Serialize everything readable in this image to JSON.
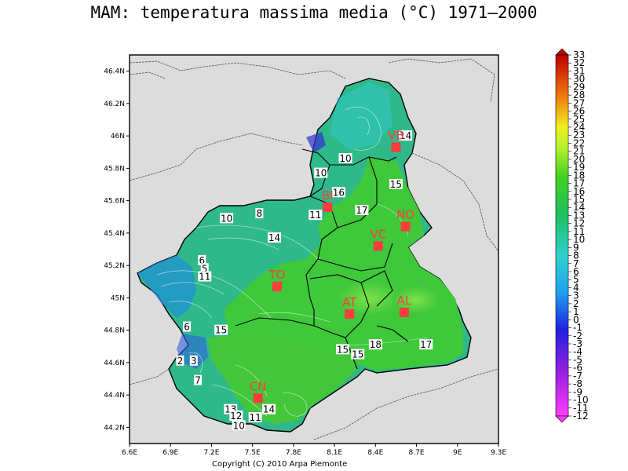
{
  "title": "MAM: temperatura massima media (°C) 1971–2000",
  "copyright": "Copyright (C) 2010 Arpa Piemonte",
  "map": {
    "lat_ticks": [
      "46.4N",
      "46.2N",
      "46N",
      "45.8N",
      "45.6N",
      "45.4N",
      "45.2N",
      "45N",
      "44.8N",
      "44.6N",
      "44.4N",
      "44.2N"
    ],
    "lon_ticks": [
      "6.6E",
      "6.9E",
      "7.2E",
      "7.5E",
      "7.8E",
      "8.1E",
      "8.4E",
      "8.7E",
      "9E",
      "9.3E"
    ],
    "cities": [
      {
        "code": "VB",
        "lon": 8.55,
        "lat": 45.93
      },
      {
        "code": "BI",
        "lon": 8.05,
        "lat": 45.56
      },
      {
        "code": "NO",
        "lon": 8.62,
        "lat": 45.44
      },
      {
        "code": "VC",
        "lon": 8.42,
        "lat": 45.32
      },
      {
        "code": "TO",
        "lon": 7.68,
        "lat": 45.07
      },
      {
        "code": "AT",
        "lon": 8.21,
        "lat": 44.9
      },
      {
        "code": "AL",
        "lon": 8.61,
        "lat": 44.91
      },
      {
        "code": "CN",
        "lon": 7.54,
        "lat": 44.38
      }
    ],
    "contour_labels": [
      {
        "text": "14",
        "lon": 8.62,
        "lat": 46.0
      },
      {
        "text": "10",
        "lon": 8.18,
        "lat": 45.86
      },
      {
        "text": "10",
        "lon": 8.0,
        "lat": 45.77
      },
      {
        "text": "16",
        "lon": 8.13,
        "lat": 45.65
      },
      {
        "text": "15",
        "lon": 8.55,
        "lat": 45.7
      },
      {
        "text": "17",
        "lon": 8.3,
        "lat": 45.54
      },
      {
        "text": "10",
        "lon": 7.31,
        "lat": 45.49
      },
      {
        "text": "8",
        "lon": 7.55,
        "lat": 45.52
      },
      {
        "text": "11",
        "lon": 7.96,
        "lat": 45.51
      },
      {
        "text": "14",
        "lon": 7.66,
        "lat": 45.37
      },
      {
        "text": "6",
        "lon": 7.13,
        "lat": 45.23
      },
      {
        "text": "5",
        "lon": 7.15,
        "lat": 45.18
      },
      {
        "text": "11",
        "lon": 7.15,
        "lat": 45.13
      },
      {
        "text": "6",
        "lon": 7.02,
        "lat": 44.82
      },
      {
        "text": "15",
        "lon": 7.27,
        "lat": 44.8
      },
      {
        "text": "15",
        "lon": 8.16,
        "lat": 44.68
      },
      {
        "text": "15",
        "lon": 8.27,
        "lat": 44.65
      },
      {
        "text": "18",
        "lon": 8.4,
        "lat": 44.71
      },
      {
        "text": "17",
        "lon": 8.77,
        "lat": 44.71
      },
      {
        "text": "2",
        "lon": 6.97,
        "lat": 44.61
      },
      {
        "text": "3",
        "lon": 7.07,
        "lat": 44.61
      },
      {
        "text": "7",
        "lon": 7.1,
        "lat": 44.49
      },
      {
        "text": "13",
        "lon": 7.34,
        "lat": 44.31
      },
      {
        "text": "14",
        "lon": 7.62,
        "lat": 44.31
      },
      {
        "text": "12",
        "lon": 7.38,
        "lat": 44.27
      },
      {
        "text": "11",
        "lon": 7.52,
        "lat": 44.26
      },
      {
        "text": "10",
        "lon": 7.4,
        "lat": 44.21
      }
    ]
  },
  "colorbar": {
    "labels": [
      "-12",
      "-11",
      "-10",
      "-9",
      "-8",
      "-7",
      "-6",
      "-5",
      "-4",
      "-3",
      "-2",
      "-1",
      "0",
      "1",
      "2",
      "3",
      "4",
      "5",
      "6",
      "7",
      "8",
      "9",
      "10",
      "11",
      "12",
      "13",
      "14",
      "15",
      "16",
      "17",
      "18",
      "19",
      "20",
      "21",
      "22",
      "23",
      "24",
      "25",
      "26",
      "27",
      "28",
      "29",
      "30",
      "31",
      "32",
      "33"
    ]
  }
}
